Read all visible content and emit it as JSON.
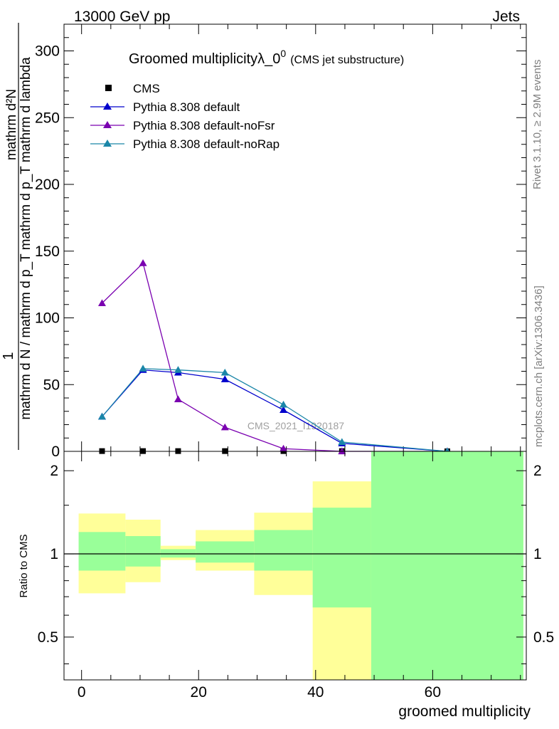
{
  "header": {
    "left": "13000 GeV pp",
    "right": "Jets"
  },
  "side_labels": {
    "rivet": "Rivet 3.1.10, ≥ 2.9M events",
    "mcplots": "mcplots.cern.ch [arXiv:1306.3436]"
  },
  "chart_data": [
    {
      "type": "line",
      "title_main": "Groomed multiplicity",
      "title_sym": "λ_0",
      "title_sup": "0",
      "title_paren": "(CMS jet substructure)",
      "ylabel_top": "1",
      "ylabel_num": "mathrm d²N",
      "ylabel_den": "mathrm d N / mathrm d p_T mathrm d p_T mathrm d lambda",
      "watermark": "CMS_2021_I1920187",
      "xlim": [
        -3,
        76
      ],
      "ylim": [
        0,
        320
      ],
      "yticks": [
        0,
        50,
        100,
        150,
        200,
        250,
        300
      ],
      "xticks": [
        0,
        20,
        40,
        60
      ],
      "bin_edges": [
        -0.5,
        7.5,
        13.5,
        19.5,
        29.5,
        39.5,
        49.5,
        75.5
      ],
      "series": [
        {
          "name": "CMS",
          "color": "#000000",
          "marker": "square",
          "x": [
            3.5,
            10.5,
            16.5,
            24.5,
            34.5,
            44.5,
            62.5
          ],
          "y": [
            0.2,
            0.2,
            0.2,
            0.2,
            0.2,
            0.2,
            0.05
          ]
        },
        {
          "name": "Pythia 8.308 default",
          "color": "#0000cc",
          "marker": "triangle",
          "x": [
            3.5,
            10.5,
            16.5,
            24.5,
            34.5,
            44.5,
            62.5
          ],
          "y": [
            26,
            61,
            59,
            54,
            31,
            6,
            0
          ]
        },
        {
          "name": "Pythia 8.308 default-noFsr",
          "color": "#7a00b0",
          "marker": "triangle",
          "x": [
            3.5,
            10.5,
            16.5,
            24.5,
            34.5,
            44.5,
            62.5
          ],
          "y": [
            111,
            141,
            39,
            18,
            2,
            0,
            0
          ]
        },
        {
          "name": "Pythia 8.308 default-noRap",
          "color": "#1a86a8",
          "marker": "triangle",
          "x": [
            3.5,
            10.5,
            16.5,
            24.5,
            34.5,
            44.5,
            62.5
          ],
          "y": [
            26,
            62,
            61,
            59,
            35,
            7,
            0
          ]
        }
      ]
    },
    {
      "type": "area",
      "ylabel": "Ratio to CMS",
      "xlabel": "groomed multiplicity",
      "xlim": [
        -3,
        76
      ],
      "ylim": [
        0.35,
        2.35
      ],
      "yticks": [
        0.5,
        1,
        2
      ],
      "ytick_labels": [
        "0.5",
        "1",
        "2"
      ],
      "xticks": [
        0,
        20,
        40,
        60
      ],
      "bands": [
        {
          "x0": -0.5,
          "x1": 7.5,
          "yellow": [
            0.72,
            1.4
          ],
          "green": [
            0.87,
            1.2
          ]
        },
        {
          "x0": 7.5,
          "x1": 13.5,
          "yellow": [
            0.79,
            1.33
          ],
          "green": [
            0.9,
            1.16
          ]
        },
        {
          "x0": 13.5,
          "x1": 19.5,
          "yellow": [
            0.95,
            1.07
          ],
          "green": [
            0.97,
            1.04
          ]
        },
        {
          "x0": 19.5,
          "x1": 29.5,
          "yellow": [
            0.87,
            1.22
          ],
          "green": [
            0.93,
            1.11
          ]
        },
        {
          "x0": 29.5,
          "x1": 39.5,
          "yellow": [
            0.71,
            1.41
          ],
          "green": [
            0.87,
            1.22
          ]
        },
        {
          "x0": 39.5,
          "x1": 49.5,
          "yellow": [
            0.35,
            1.83
          ],
          "green": [
            0.64,
            1.47
          ]
        },
        {
          "x0": 49.5,
          "x1": 75.5,
          "yellow": [
            0.35,
            2.35
          ],
          "green": [
            0.35,
            2.35
          ]
        }
      ],
      "colors": {
        "yellow": "#ffff99",
        "green": "#99ff99"
      }
    }
  ]
}
